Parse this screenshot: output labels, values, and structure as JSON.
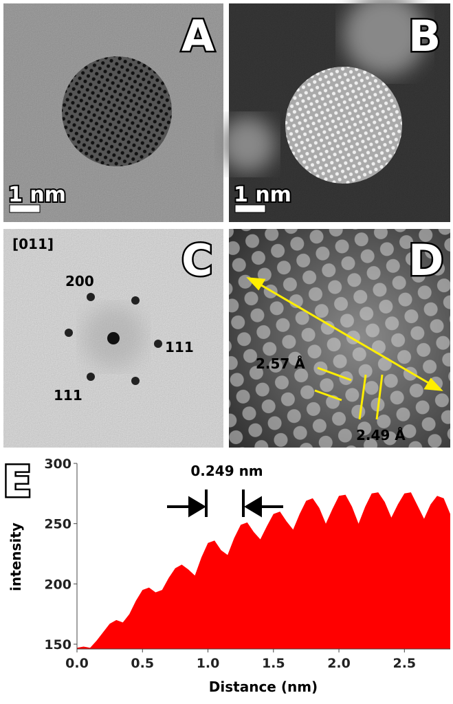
{
  "panel_labels": [
    "A",
    "B",
    "C",
    "D",
    "E"
  ],
  "scale_bars": [
    "1 nm",
    "1 nm"
  ],
  "fft": {
    "zone_axis": "[011]",
    "spots": [
      "200",
      "111",
      "111"
    ]
  },
  "lattice": {
    "spacings": [
      "2.57 Å",
      "2.49 Å"
    ]
  },
  "chart_data": {
    "type": "area",
    "color": "#ff0000",
    "x_label": "Distance (nm)",
    "y_label": "intensity",
    "annotation": "0.249 nm",
    "x": [
      0.0,
      0.05,
      0.1,
      0.15,
      0.2,
      0.25,
      0.3,
      0.35,
      0.4,
      0.45,
      0.5,
      0.55,
      0.6,
      0.65,
      0.7,
      0.75,
      0.8,
      0.85,
      0.9,
      0.95,
      1.0,
      1.05,
      1.1,
      1.15,
      1.2,
      1.25,
      1.3,
      1.35,
      1.4,
      1.45,
      1.5,
      1.55,
      1.6,
      1.65,
      1.7,
      1.75,
      1.8,
      1.85,
      1.9,
      1.95,
      2.0,
      2.05,
      2.1,
      2.15,
      2.2,
      2.25,
      2.3,
      2.35,
      2.4,
      2.45,
      2.5,
      2.55,
      2.6,
      2.65,
      2.7,
      2.75,
      2.8,
      2.85
    ],
    "values": [
      147,
      148,
      147,
      153,
      160,
      167,
      170,
      168,
      175,
      186,
      195,
      197,
      193,
      195,
      205,
      213,
      216,
      212,
      207,
      222,
      234,
      236,
      228,
      224,
      238,
      249,
      251,
      243,
      237,
      248,
      258,
      260,
      252,
      245,
      258,
      269,
      271,
      263,
      250,
      262,
      273,
      274,
      264,
      250,
      264,
      275,
      276,
      268,
      255,
      266,
      275,
      276,
      265,
      254,
      266,
      273,
      271,
      258
    ],
    "xlim": [
      0,
      2.85
    ],
    "ylim": [
      146,
      300
    ],
    "xticks": [
      {
        "value": 0,
        "label": "0.0"
      },
      0.5,
      {
        "value": 1,
        "label": "1.0"
      },
      1.5,
      {
        "value": 2,
        "label": "2.0"
      },
      2.5
    ],
    "yticks": [
      150,
      200,
      250,
      300
    ]
  }
}
